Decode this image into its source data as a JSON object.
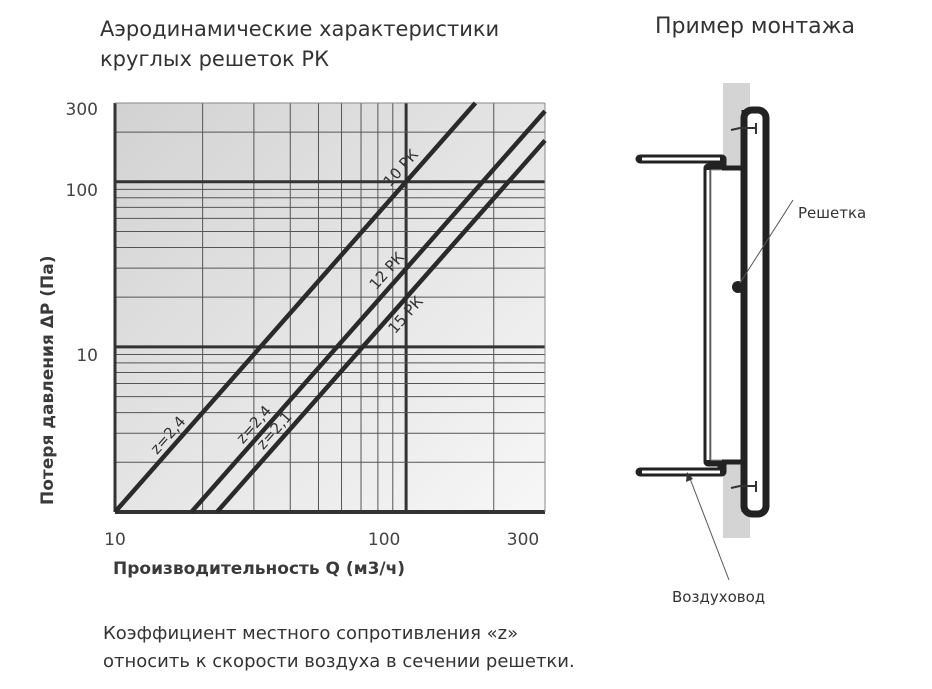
{
  "title": {
    "line1": "Аэродинамические характеристики",
    "line2": "круглых решеток РК"
  },
  "chart_data": {
    "type": "line",
    "xscale": "log",
    "yscale": "log",
    "xlabel": "Производительность Q (м3/ч)",
    "ylabel": "Потеря давления  ΔP (Па)",
    "xlim": [
      10,
      300
    ],
    "ylim": [
      1,
      300
    ],
    "x_ticks": [
      "10",
      "100",
      "300"
    ],
    "y_ticks": [
      "300",
      "100",
      "10"
    ],
    "grid": true,
    "series": [
      {
        "name": "10 РК",
        "annotation": "z=2,4",
        "x": [
          10,
          173
        ],
        "y": [
          1,
          300
        ]
      },
      {
        "name": "12 РК",
        "annotation": "z=2,4",
        "x": [
          18.3,
          300
        ],
        "y": [
          1,
          268
        ]
      },
      {
        "name": "15 РК",
        "annotation": "z=2,1",
        "x": [
          22.4,
          300
        ],
        "y": [
          1,
          178
        ]
      }
    ]
  },
  "diagram": {
    "title": "Пример монтажа",
    "grille_label": "Решетка",
    "duct_label": "Воздуховод"
  },
  "note": {
    "line1": "Коэффициент  местного сопротивления «z»",
    "line2": "относить к скорости воздуха в сечении решетки."
  }
}
